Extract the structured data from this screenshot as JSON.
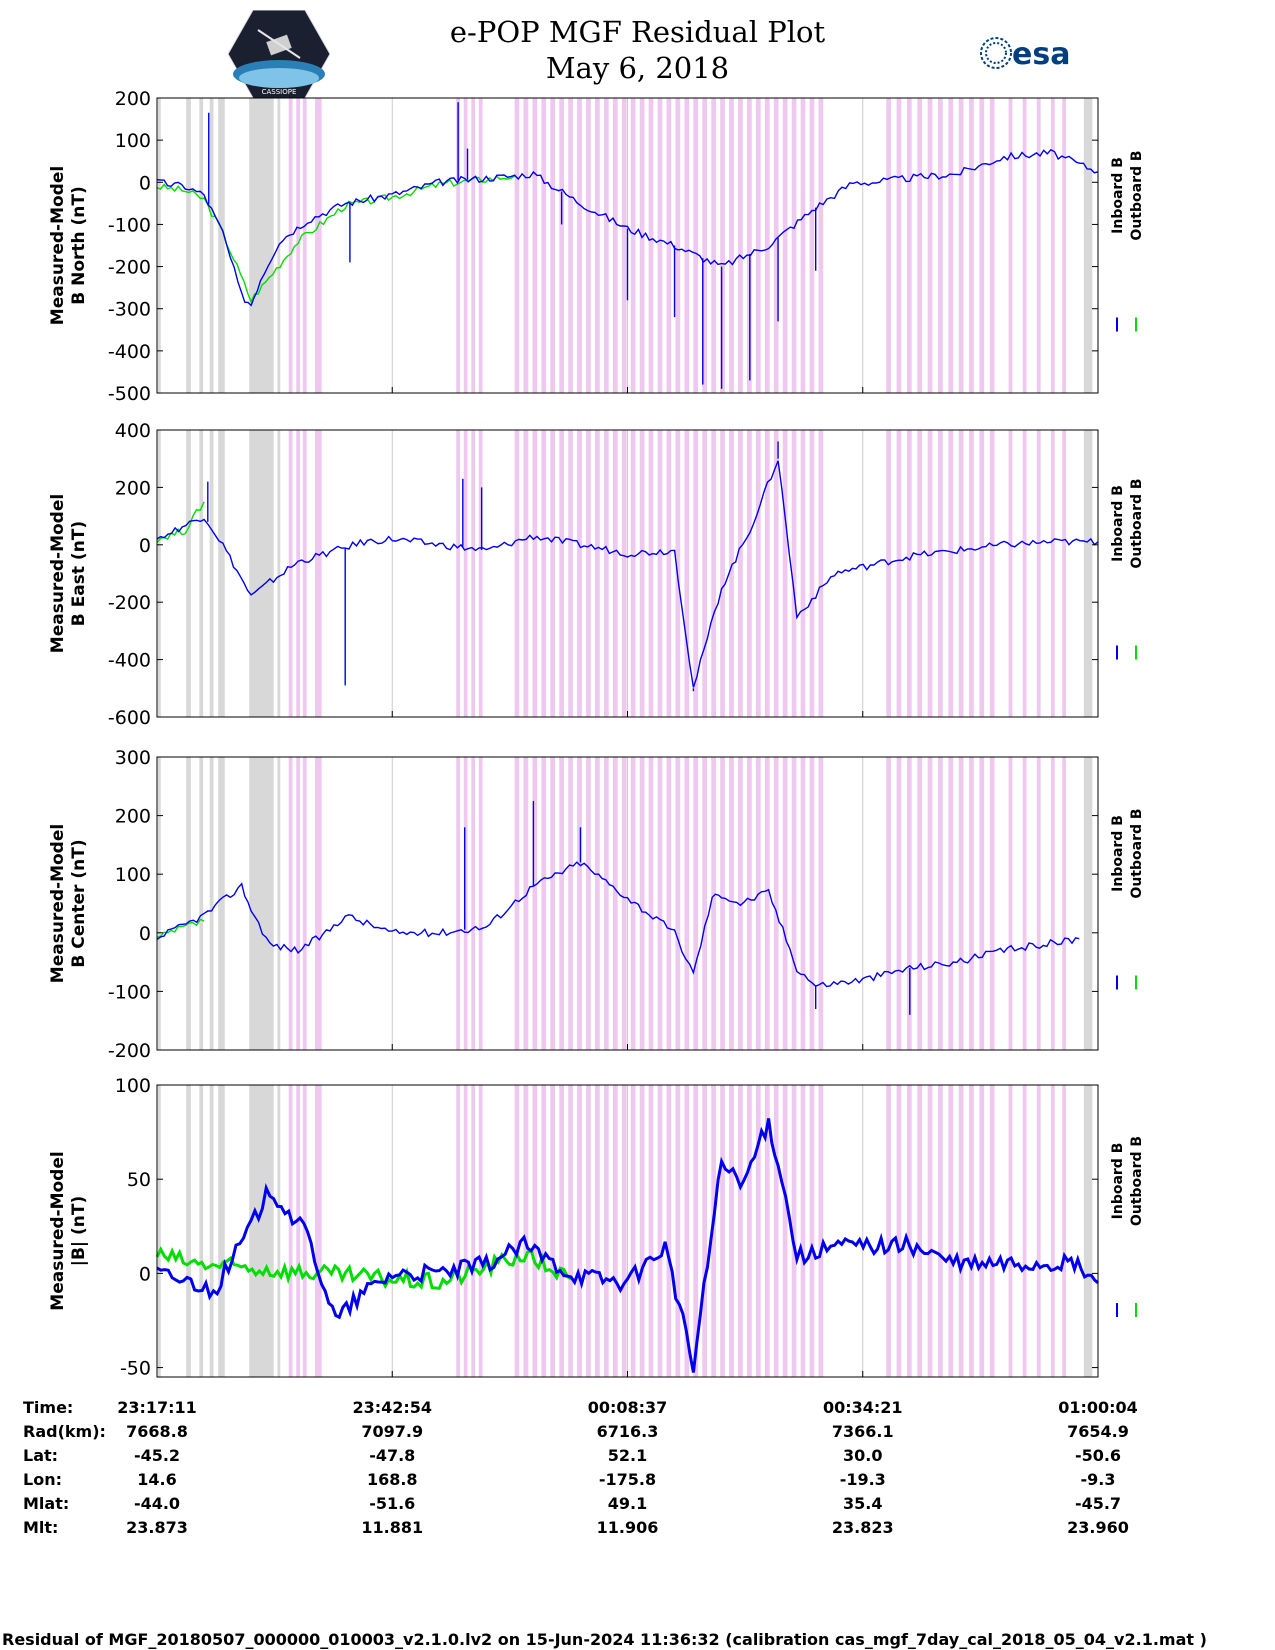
{
  "page": {
    "title_line1": "e-POP MGF Residual Plot",
    "title_line2": "May 6, 2018",
    "logo_left_text": "CASSIOPE",
    "logo_right_text": "esa",
    "footer": "Residual of MGF_20180507_000000_010003_v2.1.0.lv2 on 15-Jun-2024 11:36:32 (calibration cas_mgf_7day_cal_2018_05_04_v2.1.mat )"
  },
  "colors": {
    "inboard": "#0000ee",
    "outboard": "#00dd00",
    "magenta_band": "#eec8ee",
    "gray_band": "#d8d8d8"
  },
  "chart_data": [
    {
      "type": "line",
      "id": "bnorth",
      "ylabel_line1": "Measured-Model",
      "ylabel_line2": "B North (nT)",
      "ylim": [
        -500,
        200
      ],
      "yticks": [
        200,
        100,
        0,
        -100,
        -200,
        -300,
        -400,
        -500
      ],
      "xlim": [
        0,
        1.0
      ],
      "legend": [
        "Inboard B",
        "Outboard B"
      ],
      "series": [
        {
          "name": "Inboard B",
          "x": [
            0,
            0.03,
            0.05,
            0.07,
            0.09,
            0.1,
            0.11,
            0.13,
            0.16,
            0.2,
            0.25,
            0.3,
            0.35,
            0.38,
            0.4,
            0.45,
            0.5,
            0.55,
            0.6,
            0.65,
            0.7,
            0.74,
            0.76,
            0.8,
            0.85,
            0.9,
            0.95,
            1.0
          ],
          "values": [
            0,
            -10,
            -30,
            -120,
            -270,
            -290,
            -230,
            -140,
            -90,
            -50,
            -30,
            0,
            10,
            15,
            20,
            -50,
            -110,
            -150,
            -200,
            -150,
            -60,
            0,
            0,
            10,
            20,
            60,
            70,
            25
          ],
          "spikes": [
            {
              "x": 0.055,
              "v": 165
            },
            {
              "x": 0.205,
              "v": -190
            },
            {
              "x": 0.32,
              "v": 190
            },
            {
              "x": 0.33,
              "v": 80
            },
            {
              "x": 0.43,
              "v": -100
            },
            {
              "x": 0.5,
              "v": -280
            },
            {
              "x": 0.55,
              "v": -320
            },
            {
              "x": 0.58,
              "v": -480
            },
            {
              "x": 0.6,
              "v": -490
            },
            {
              "x": 0.63,
              "v": -470
            },
            {
              "x": 0.66,
              "v": -330
            },
            {
              "x": 0.7,
              "v": -210
            }
          ]
        },
        {
          "name": "Outboard B",
          "x": [
            0,
            0.03,
            0.05,
            0.07,
            0.1,
            0.15,
            0.2,
            0.25,
            0.3,
            0.38
          ],
          "values": [
            -10,
            -20,
            -40,
            -120,
            -280,
            -140,
            -55,
            -35,
            -5,
            15
          ]
        }
      ]
    },
    {
      "type": "line",
      "id": "beast",
      "ylabel_line1": "Measured-Model",
      "ylabel_line2": "B East (nT)",
      "ylim": [
        -600,
        400
      ],
      "yticks": [
        400,
        200,
        0,
        -200,
        -400,
        -600
      ],
      "xlim": [
        0,
        1.0
      ],
      "legend": [
        "Inboard B",
        "Outboard B"
      ],
      "series": [
        {
          "name": "Inboard B",
          "x": [
            0,
            0.05,
            0.07,
            0.1,
            0.12,
            0.15,
            0.18,
            0.2,
            0.22,
            0.25,
            0.3,
            0.35,
            0.4,
            0.45,
            0.5,
            0.55,
            0.57,
            0.6,
            0.63,
            0.66,
            0.68,
            0.72,
            0.8,
            0.9,
            0.95,
            1.0
          ],
          "values": [
            20,
            100,
            0,
            -180,
            -130,
            -60,
            -30,
            -10,
            10,
            20,
            0,
            -20,
            30,
            0,
            -30,
            -20,
            -500,
            -150,
            50,
            300,
            -250,
            -100,
            -40,
            0,
            10,
            10
          ],
          "spikes": [
            {
              "x": 0.054,
              "v": 220
            },
            {
              "x": 0.2,
              "v": -490
            },
            {
              "x": 0.325,
              "v": 230
            },
            {
              "x": 0.345,
              "v": 200
            },
            {
              "x": 0.57,
              "v": -510
            },
            {
              "x": 0.66,
              "v": 360
            }
          ]
        },
        {
          "name": "Outboard B",
          "x": [
            0,
            0.03,
            0.05
          ],
          "values": [
            20,
            50,
            150
          ]
        }
      ]
    },
    {
      "type": "line",
      "id": "bcenter",
      "ylabel_line1": "Measured-Model",
      "ylabel_line2": "B Center (nT)",
      "ylim": [
        -200,
        300
      ],
      "yticks": [
        300,
        200,
        100,
        0,
        -100,
        -200
      ],
      "xlim": [
        0,
        1.0
      ],
      "legend": [
        "Inboard B",
        "Outboard B"
      ],
      "series": [
        {
          "name": "Inboard B",
          "x": [
            0,
            0.05,
            0.09,
            0.1,
            0.12,
            0.15,
            0.18,
            0.2,
            0.25,
            0.3,
            0.35,
            0.4,
            0.45,
            0.5,
            0.55,
            0.57,
            0.59,
            0.6,
            0.62,
            0.65,
            0.68,
            0.7,
            0.75,
            0.8,
            0.85,
            0.9,
            0.98
          ],
          "values": [
            -10,
            30,
            80,
            40,
            -20,
            -30,
            0,
            30,
            0,
            0,
            10,
            80,
            120,
            60,
            0,
            -70,
            60,
            65,
            50,
            70,
            -60,
            -90,
            -80,
            -60,
            -50,
            -30,
            -10
          ],
          "spikes": [
            {
              "x": 0.327,
              "v": 180
            },
            {
              "x": 0.4,
              "v": 225
            },
            {
              "x": 0.45,
              "v": 180
            },
            {
              "x": 0.7,
              "v": -130
            },
            {
              "x": 0.8,
              "v": -140
            }
          ]
        },
        {
          "name": "Outboard B",
          "x": [
            0,
            0.03,
            0.05
          ],
          "values": [
            -10,
            10,
            20
          ]
        }
      ]
    },
    {
      "type": "line",
      "id": "bmag",
      "ylabel_line1": "Measured-Model",
      "ylabel_line2": "|B| (nT)",
      "ylim": [
        -55,
        100
      ],
      "yticks": [
        100,
        50,
        0,
        -50
      ],
      "xlim": [
        0,
        1.0
      ],
      "legend": [
        "Inboard B",
        "Outboard B"
      ],
      "series": [
        {
          "name": "Inboard B",
          "x": [
            0,
            0.04,
            0.06,
            0.1,
            0.12,
            0.16,
            0.19,
            0.22,
            0.25,
            0.3,
            0.35,
            0.39,
            0.44,
            0.5,
            0.54,
            0.57,
            0.6,
            0.62,
            0.65,
            0.66,
            0.68,
            0.7,
            0.72,
            0.8,
            0.85,
            0.9,
            0.95,
            0.975,
            1.0
          ],
          "values": [
            0,
            -5,
            -10,
            25,
            45,
            20,
            -25,
            -10,
            0,
            0,
            5,
            15,
            0,
            -5,
            15,
            -50,
            60,
            45,
            80,
            60,
            10,
            10,
            15,
            15,
            5,
            5,
            5,
            5,
            -5
          ]
        },
        {
          "name": "Outboard B",
          "x": [
            0,
            0.04,
            0.3,
            0.39,
            0.44
          ],
          "values": [
            10,
            5,
            -5,
            10,
            -3
          ]
        }
      ]
    }
  ],
  "time_table": {
    "rows": [
      {
        "label": "Time:",
        "values": [
          "23:17:11",
          "23:42:54",
          "00:08:37",
          "00:34:21",
          "01:00:04"
        ]
      },
      {
        "label": "Rad(km):",
        "values": [
          "7668.8",
          "7097.9",
          "6716.3",
          "7366.1",
          "7654.9"
        ]
      },
      {
        "label": "Lat:",
        "values": [
          "-45.2",
          "-47.8",
          "52.1",
          "30.0",
          "-50.6"
        ]
      },
      {
        "label": "Lon:",
        "values": [
          "14.6",
          "168.8",
          "-175.8",
          "-19.3",
          "-9.3"
        ]
      },
      {
        "label": "Mlat:",
        "values": [
          "-44.0",
          "-51.6",
          "49.1",
          "35.4",
          "-45.7"
        ]
      },
      {
        "label": "Mlt:",
        "values": [
          "23.873",
          "11.881",
          "11.906",
          "23.823",
          "23.960"
        ]
      }
    ]
  }
}
